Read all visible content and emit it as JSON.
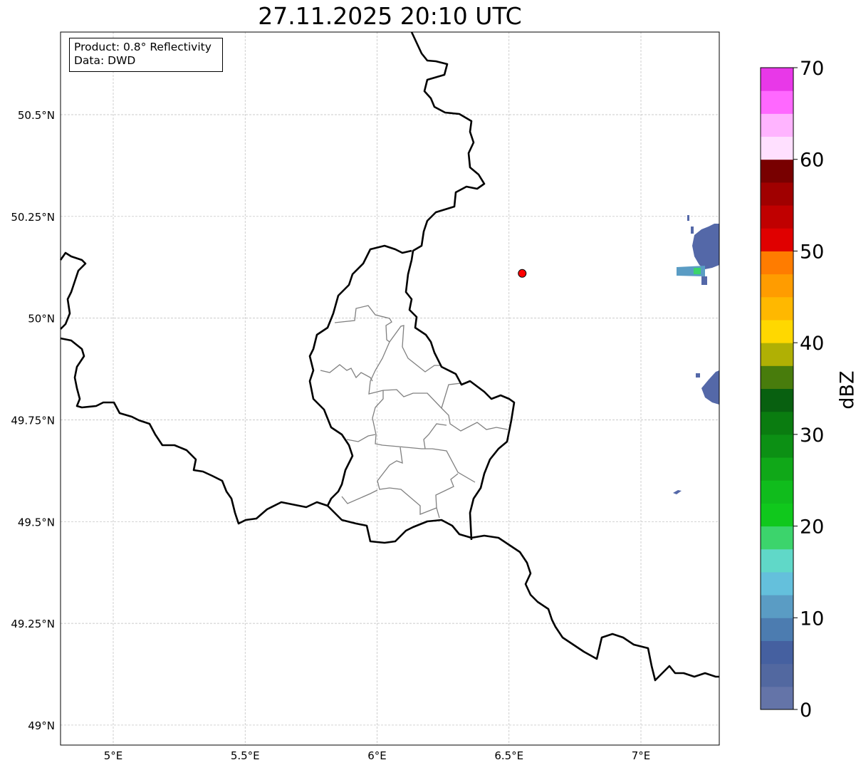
{
  "title": "27.11.2025 20:10 UTC",
  "info": {
    "product": "Product: 0.8° Reflectivity",
    "data": "Data: DWD"
  },
  "axes": {
    "lon_ticks": [
      {
        "value": 5,
        "label": "5°E"
      },
      {
        "value": 5.5,
        "label": "5.5°E"
      },
      {
        "value": 6,
        "label": "6°E"
      },
      {
        "value": 6.5,
        "label": "6.5°E"
      },
      {
        "value": 7,
        "label": "7°E"
      }
    ],
    "lat_ticks": [
      {
        "value": 50.5,
        "label": "50.5°N"
      },
      {
        "value": 50.25,
        "label": "50.25°N"
      },
      {
        "value": 50,
        "label": "50°N"
      },
      {
        "value": 49.75,
        "label": "49.75°N"
      },
      {
        "value": 49.5,
        "label": "49.5°N"
      },
      {
        "value": 49.25,
        "label": "49.25°N"
      },
      {
        "value": 49,
        "label": "49°N"
      }
    ],
    "lon_range": [
      4.8,
      7.3
    ],
    "lat_range": [
      48.95,
      50.7
    ]
  },
  "marker": {
    "lon": 6.55,
    "lat": 50.11,
    "color": "#ff0000"
  },
  "colorbar": {
    "label": "dBZ",
    "min": 0,
    "max": 70,
    "step": 2.5,
    "ticks": [
      {
        "value": 0,
        "label": "0"
      },
      {
        "value": 10,
        "label": "10"
      },
      {
        "value": 20,
        "label": "20"
      },
      {
        "value": 30,
        "label": "30"
      },
      {
        "value": 40,
        "label": "40"
      },
      {
        "value": 50,
        "label": "50"
      },
      {
        "value": 60,
        "label": "60"
      },
      {
        "value": 70,
        "label": "70"
      }
    ],
    "colors": [
      "#6474a8",
      "#5268a0",
      "#4560a0",
      "#4c7cb0",
      "#5a9cc4",
      "#64c0dc",
      "#60d8c8",
      "#3cd46c",
      "#10c81c",
      "#10bc1c",
      "#10a818",
      "#0c9014",
      "#0a7c10",
      "#086010",
      "#487c0c",
      "#b0b004",
      "#ffd800",
      "#ffb800",
      "#ff9c00",
      "#ff7c00",
      "#e00000",
      "#c00000",
      "#a00000",
      "#780000",
      "#ffe0ff",
      "#ffb4ff",
      "#ff68ff",
      "#e838e8"
    ]
  }
}
